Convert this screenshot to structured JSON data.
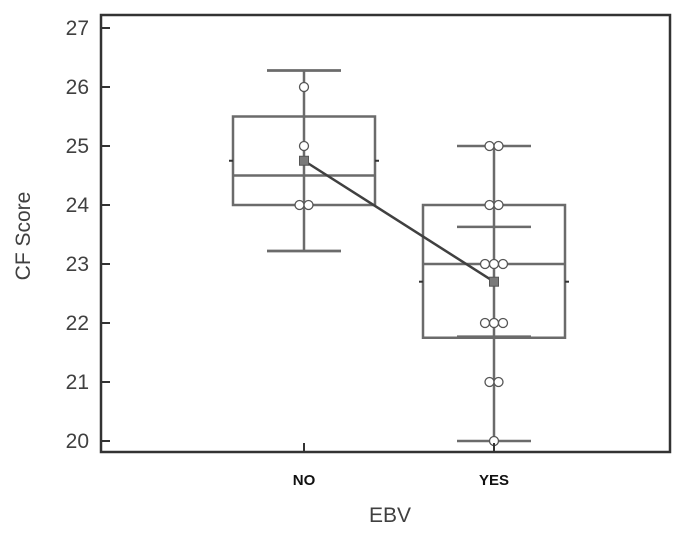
{
  "chart_data": {
    "type": "box",
    "xlabel": "EBV",
    "ylabel": "CF Score",
    "ylim": [
      19.8,
      27.2
    ],
    "yticks": [
      20,
      21,
      22,
      23,
      24,
      25,
      26,
      27
    ],
    "categories": [
      "NO",
      "YES"
    ],
    "grid": false,
    "groups": [
      {
        "category": "NO",
        "q1": 24.0,
        "median": 24.5,
        "q3": 25.5,
        "whisker_low": 23.22,
        "whisker_high": 26.28,
        "mean_minus_sd": 23.22,
        "mean_plus_sd": 26.28,
        "mean": 24.75,
        "points": [
          24,
          24,
          25,
          26
        ]
      },
      {
        "category": "YES",
        "q1": 21.75,
        "median": 23.0,
        "q3": 24.0,
        "whisker_low": 20.0,
        "whisker_high": 25.0,
        "mean_minus_sd": 21.77,
        "mean_plus_sd": 23.63,
        "mean": 22.7,
        "points": [
          20,
          21,
          21,
          22,
          22,
          22,
          23,
          23,
          23,
          24,
          24,
          25,
          25
        ]
      }
    ],
    "colors": {
      "box": "#6b6b6b",
      "mean_line": "#404040",
      "mean_marker": "#7a7a7a",
      "axis": "#333333"
    }
  }
}
